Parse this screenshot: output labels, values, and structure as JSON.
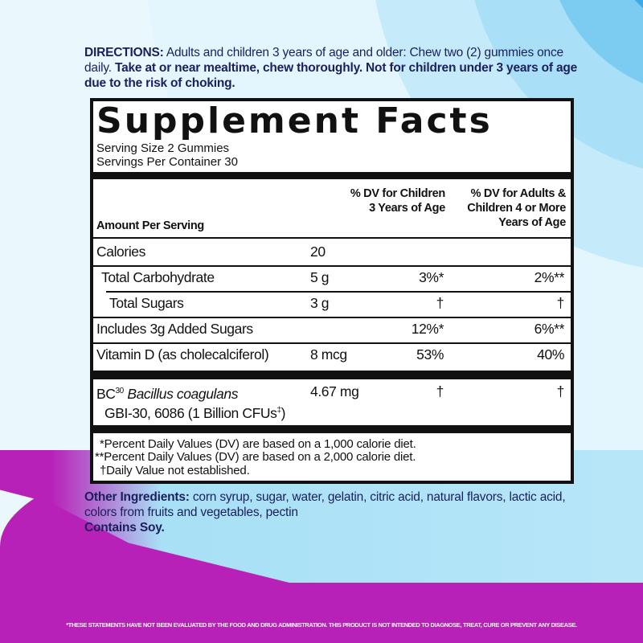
{
  "directions": {
    "label": "DIRECTIONS:",
    "text1": " Adults and children 3 years of age and older: Chew two (2) gummies once daily. ",
    "bold": "Take at or near mealtime, chew thoroughly. Not for children under 3 years of age due to the risk of choking."
  },
  "facts": {
    "title": "Supplement Facts",
    "serving_size": "Serving Size 2 Gummies",
    "servings_per_container": "Servings Per Container 30",
    "header": {
      "amount": "Amount Per Serving",
      "col_children": "% DV for Children 3 Years of Age",
      "col_adults": "% DV for Adults & Children 4 or More Years of Age"
    },
    "rows": [
      {
        "name": "Calories",
        "amount": "20",
        "dv_children": "",
        "dv_adults": ""
      },
      {
        "name": "Total Carbohydrate",
        "amount": "5 g",
        "dv_children": "3%*",
        "dv_adults": "2%**"
      },
      {
        "name": "Total Sugars",
        "amount": "3 g",
        "dv_children": "†",
        "dv_adults": "†"
      },
      {
        "name": "Includes 3g Added Sugars",
        "amount": "",
        "dv_children": "12%*",
        "dv_adults": "6%**"
      },
      {
        "name": "Vitamin D (as cholecalciferol)",
        "amount": "8 mcg",
        "dv_children": "53%",
        "dv_adults": "40%"
      }
    ],
    "bc": {
      "prefix": "BC",
      "sup": "30",
      "species": "Bacillus coagulans",
      "strain": "GBI-30, 6086 (1 Billion CFUs",
      "strain_sup": "‡",
      "strain_end": ")",
      "amount": "4.67 mg",
      "dv_children": "†",
      "dv_adults": "†"
    },
    "footnotes": [
      "*Percent Daily Values (DV) are based on a 1,000 calorie diet.",
      "**Percent Daily Values (DV) are based on a 2,000 calorie diet.",
      "†Daily Value not established."
    ]
  },
  "other": {
    "label": "Other Ingredients:",
    "text": " corn syrup, sugar, water, gelatin, citric acid, natural flavors, lactic acid, colors from fruits and vegetables, pectin",
    "contains": "Contains Soy."
  },
  "disclaimer": "*THESE STATEMENTS HAVE NOT BEEN EVALUATED BY THE FOOD AND DRUG ADMINISTRATION. THIS PRODUCT IS NOT INTENDED TO DIAGNOSE, TREAT, CURE OR PREVENT ANY DISEASE."
}
